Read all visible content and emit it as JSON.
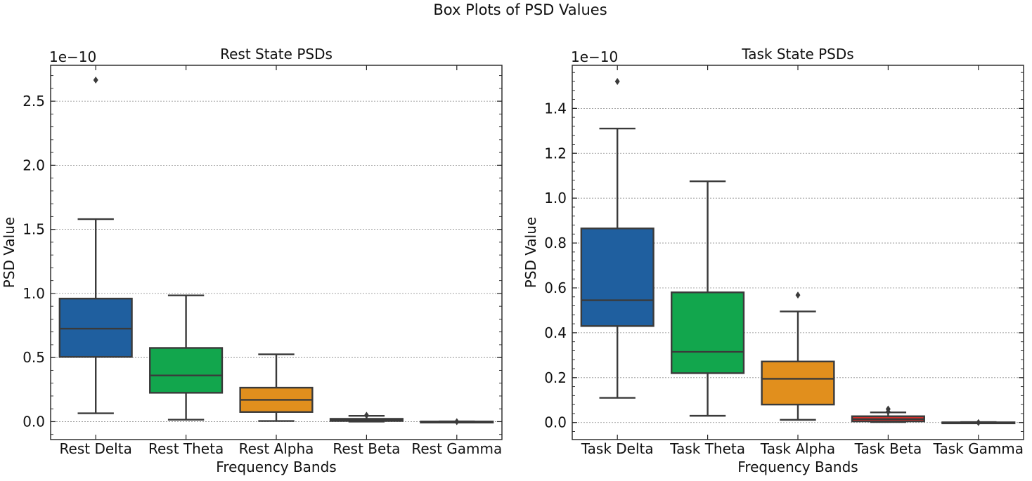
{
  "figure_title": "Box Plots of PSD Values",
  "chart_data": [
    {
      "type": "box",
      "title": "Rest State PSDs",
      "xlabel": "Frequency Bands",
      "ylabel": "PSD Value",
      "y_multiplier": "1e−10",
      "ylim": [
        -0.14,
        2.78
      ],
      "yticks": [
        0.0,
        0.5,
        1.0,
        1.5,
        2.0,
        2.5
      ],
      "ytick_labels": [
        "0.0",
        "0.5",
        "1.0",
        "1.5",
        "2.0",
        "2.5"
      ],
      "grid": "y",
      "categories": [
        "Rest Delta",
        "Rest Theta",
        "Rest Alpha",
        "Rest Beta",
        "Rest Gamma"
      ],
      "boxes": [
        {
          "label": "Rest Delta",
          "whisker_low": 0.065,
          "q1": 0.505,
          "median": 0.725,
          "q3": 0.96,
          "whisker_high": 1.58,
          "outliers": [
            2.665
          ],
          "color": "#1f5f9f"
        },
        {
          "label": "Rest Theta",
          "whisker_low": 0.015,
          "q1": 0.225,
          "median": 0.36,
          "q3": 0.575,
          "whisker_high": 0.985,
          "outliers": [],
          "color": "#12a64d"
        },
        {
          "label": "Rest Alpha",
          "whisker_low": 0.005,
          "q1": 0.075,
          "median": 0.17,
          "q3": 0.265,
          "whisker_high": 0.525,
          "outliers": [],
          "color": "#e18f1d"
        },
        {
          "label": "Rest Beta",
          "whisker_low": 0.0,
          "q1": 0.005,
          "median": 0.012,
          "q3": 0.022,
          "whisker_high": 0.045,
          "outliers": [
            0.05
          ],
          "color": "#d2302c"
        },
        {
          "label": "Rest Gamma",
          "whisker_low": 0.0,
          "q1": 0.0,
          "median": 0.0,
          "q3": 0.001,
          "whisker_high": 0.002,
          "outliers": [
            0.0
          ],
          "color": "#8a56c2"
        }
      ]
    },
    {
      "type": "box",
      "title": "Task State PSDs",
      "xlabel": "Frequency Bands",
      "ylabel": "PSD Value",
      "y_multiplier": "1e−10",
      "ylim": [
        -0.076,
        1.592
      ],
      "yticks": [
        0.0,
        0.2,
        0.4,
        0.6,
        0.8,
        1.0,
        1.2,
        1.4
      ],
      "ytick_labels": [
        "0.0",
        "0.2",
        "0.4",
        "0.6",
        "0.8",
        "1.0",
        "1.2",
        "1.4"
      ],
      "grid": "y",
      "categories": [
        "Task Delta",
        "Task Theta",
        "Task Alpha",
        "Task Beta",
        "Task Gamma"
      ],
      "boxes": [
        {
          "label": "Task Delta",
          "whisker_low": 0.11,
          "q1": 0.43,
          "median": 0.545,
          "q3": 0.865,
          "whisker_high": 1.31,
          "outliers": [
            1.52
          ],
          "color": "#1f5f9f"
        },
        {
          "label": "Task Theta",
          "whisker_low": 0.03,
          "q1": 0.22,
          "median": 0.315,
          "q3": 0.58,
          "whisker_high": 1.075,
          "outliers": [],
          "color": "#12a64d"
        },
        {
          "label": "Task Alpha",
          "whisker_low": 0.012,
          "q1": 0.08,
          "median": 0.195,
          "q3": 0.272,
          "whisker_high": 0.495,
          "outliers": [
            0.568
          ],
          "color": "#e18f1d"
        },
        {
          "label": "Task Beta",
          "whisker_low": 0.002,
          "q1": 0.005,
          "median": 0.015,
          "q3": 0.028,
          "whisker_high": 0.045,
          "outliers": [
            0.06,
            0.048
          ],
          "color": "#d2302c"
        },
        {
          "label": "Task Gamma",
          "whisker_low": 0.0,
          "q1": 0.0,
          "median": 0.0,
          "q3": 0.001,
          "whisker_high": 0.002,
          "outliers": [
            0.0
          ],
          "color": "#8a56c2"
        }
      ]
    }
  ]
}
